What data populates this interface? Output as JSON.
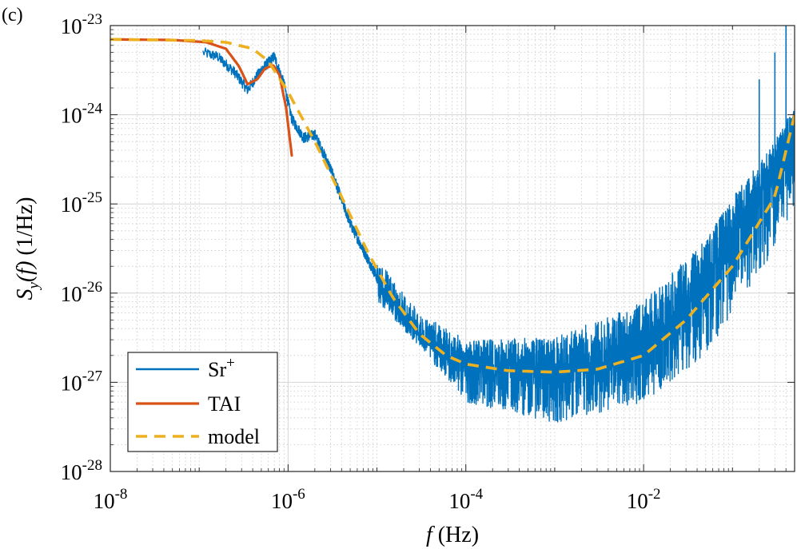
{
  "panel_label": "(c)",
  "chart_data": {
    "type": "line",
    "xscale": "log",
    "yscale": "log",
    "xlim": [
      1e-08,
      0.5
    ],
    "ylim": [
      1e-28,
      1e-23
    ],
    "grid": true,
    "legend_position": "bottom-left",
    "xlabel": {
      "var": "f",
      "unit": " (Hz)"
    },
    "ylabel": {
      "var": "S",
      "sub": "y",
      "arg": "(f)",
      "unit": " (1/Hz)"
    },
    "xticks": [
      {
        "value": 1e-08,
        "base": "10",
        "exp": "-8"
      },
      {
        "value": 1e-06,
        "base": "10",
        "exp": "-6"
      },
      {
        "value": 0.0001,
        "base": "10",
        "exp": "-4"
      },
      {
        "value": 0.01,
        "base": "10",
        "exp": "-2"
      }
    ],
    "yticks": [
      {
        "value": 1e-28,
        "base": "10",
        "exp": "-28"
      },
      {
        "value": 1e-27,
        "base": "10",
        "exp": "-27"
      },
      {
        "value": 1e-26,
        "base": "10",
        "exp": "-26"
      },
      {
        "value": 1e-25,
        "base": "10",
        "exp": "-25"
      },
      {
        "value": 1e-24,
        "base": "10",
        "exp": "-24"
      },
      {
        "value": 1e-23,
        "base": "10",
        "exp": "-23"
      }
    ],
    "series": [
      {
        "name": "Sr",
        "name_sup": "+",
        "color": "#0072BD",
        "style": "noisy",
        "note": "mean trend (upper/lower noise envelope) estimated from the plot",
        "trend": [
          [
            1.1e-07,
            5e-24
          ],
          [
            1.6e-07,
            4.5e-24
          ],
          [
            2.5e-07,
            3e-24
          ],
          [
            3.5e-07,
            1.9e-24
          ],
          [
            5e-07,
            3.2e-24
          ],
          [
            7e-07,
            4.5e-24
          ],
          [
            9e-07,
            2.2e-24
          ],
          [
            1.1e-06,
            9e-25
          ],
          [
            1.5e-06,
            5.5e-25
          ],
          [
            2e-06,
            6e-25
          ],
          [
            3e-06,
            2.5e-25
          ],
          [
            5e-06,
            6e-26
          ],
          [
            1e-05,
            1.5e-26
          ],
          [
            2e-05,
            5e-27
          ],
          [
            5e-05,
            2.2e-27
          ],
          [
            0.0001,
            1.6e-27
          ],
          [
            0.0003,
            1.4e-27
          ],
          [
            0.001,
            1.4e-27
          ],
          [
            0.003,
            1.5e-27
          ],
          [
            0.01,
            2.5e-27
          ],
          [
            0.03,
            7e-27
          ],
          [
            0.1,
            4e-26
          ],
          [
            0.2,
            1.5e-25
          ],
          [
            0.5,
            7e-25
          ]
        ],
        "envelope_up": [
          [
            1e-05,
            2.5e-26
          ],
          [
            3e-05,
            6e-27
          ],
          [
            0.0001,
            3e-27
          ],
          [
            0.001,
            3.2e-27
          ],
          [
            0.01,
            8e-27
          ],
          [
            0.05,
            4e-26
          ],
          [
            0.1,
            1.2e-25
          ],
          [
            0.3,
            5e-25
          ],
          [
            0.5,
            1.3e-24
          ]
        ],
        "envelope_down": [
          [
            1e-05,
            8e-27
          ],
          [
            3e-05,
            2.5e-27
          ],
          [
            0.0001,
            6e-28
          ],
          [
            0.001,
            3.5e-28
          ],
          [
            0.01,
            6e-28
          ],
          [
            0.05,
            2e-27
          ],
          [
            0.1,
            6e-27
          ],
          [
            0.3,
            3e-26
          ],
          [
            0.5,
            1e-25
          ]
        ],
        "spikes": [
          [
            0.2,
            2.5e-24
          ],
          [
            0.3,
            5e-24
          ],
          [
            0.4,
            1e-23
          ]
        ]
      },
      {
        "name": "TAI",
        "color": "#D95319",
        "style": "solid",
        "points": [
          [
            1e-08,
            7e-24
          ],
          [
            5e-08,
            6.9e-24
          ],
          [
            1.2e-07,
            6.5e-24
          ],
          [
            2e-07,
            5.5e-24
          ],
          [
            2.8e-07,
            3.5e-24
          ],
          [
            3.5e-07,
            2.2e-24
          ],
          [
            4.5e-07,
            2.5e-24
          ],
          [
            5.5e-07,
            3.3e-24
          ],
          [
            6.8e-07,
            3.6e-24
          ],
          [
            8e-07,
            2.8e-24
          ],
          [
            9.5e-07,
            1.2e-24
          ],
          [
            1.1e-06,
            3.5e-25
          ]
        ]
      },
      {
        "name": "model",
        "color": "#EDB120",
        "style": "dashed",
        "points": [
          [
            1e-08,
            7e-24
          ],
          [
            1e-07,
            6.8e-24
          ],
          [
            2e-07,
            6.5e-24
          ],
          [
            4e-07,
            5.5e-24
          ],
          [
            6e-07,
            4e-24
          ],
          [
            1e-06,
            1.8e-24
          ],
          [
            2e-06,
            5e-25
          ],
          [
            4e-06,
            1.2e-25
          ],
          [
            8e-06,
            2.8e-26
          ],
          [
            1.5e-05,
            9e-27
          ],
          [
            3e-05,
            3.5e-27
          ],
          [
            6e-05,
            2e-27
          ],
          [
            0.0001,
            1.6e-27
          ],
          [
            0.0003,
            1.35e-27
          ],
          [
            0.001,
            1.3e-27
          ],
          [
            0.003,
            1.4e-27
          ],
          [
            0.01,
            2e-27
          ],
          [
            0.03,
            5e-27
          ],
          [
            0.1,
            2e-26
          ],
          [
            0.3,
            1.2e-25
          ],
          [
            0.5,
            1e-24
          ]
        ]
      }
    ]
  }
}
